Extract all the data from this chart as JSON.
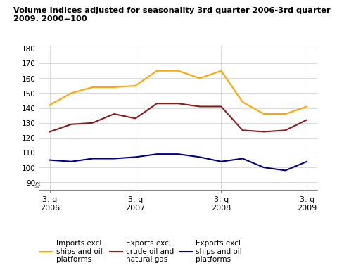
{
  "title_line1": "Volume indices adjusted for seasonality 3rd quarter 2006-3rd quarter",
  "title_line2": "2009. 2000=100",
  "x_labels": [
    "3. q\n2006",
    "3. q\n2007",
    "3. q\n2008",
    "3. q\n2009"
  ],
  "x_tick_positions": [
    0,
    4,
    8,
    12
  ],
  "x_values": [
    0,
    1,
    2,
    3,
    4,
    5,
    6,
    7,
    8,
    9,
    10,
    11,
    12
  ],
  "imports_excl": [
    142,
    150,
    154,
    154,
    155,
    165,
    165,
    160,
    165,
    144,
    136,
    136,
    141
  ],
  "exports_excl_oil": [
    124,
    129,
    130,
    136,
    133,
    143,
    143,
    141,
    141,
    125,
    124,
    125,
    132
  ],
  "exports_excl_ships": [
    105,
    104,
    106,
    106,
    107,
    109,
    109,
    107,
    104,
    106,
    100,
    98,
    104
  ],
  "imports_color": "#FFA500",
  "exports_oil_color": "#8B1A1A",
  "exports_ships_color": "#00008B",
  "ylim_top": 180,
  "yticks": [
    90,
    100,
    110,
    120,
    130,
    140,
    150,
    160,
    170,
    180
  ],
  "legend_labels": [
    "Imports excl.\nships and oil\nplatforms",
    "Exports excl.\ncrude oil and\nnatural gas",
    "Exports excl.\nships and oil\nplatforms"
  ],
  "background_color": "#ffffff",
  "grid_color": "#cccccc"
}
